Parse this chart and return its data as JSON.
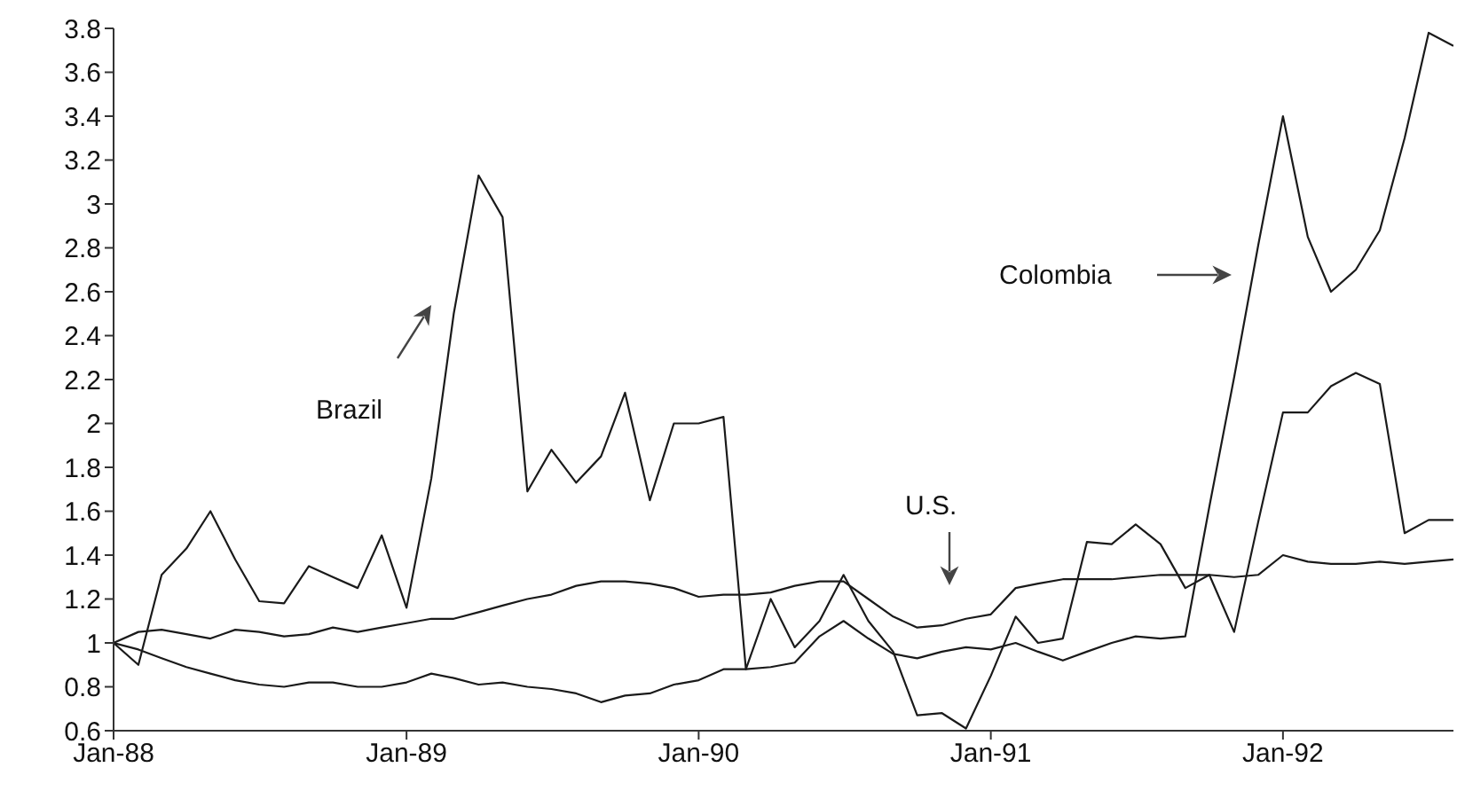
{
  "chart_data": {
    "type": "line",
    "x": [
      "1988-01",
      "1988-02",
      "1988-03",
      "1988-04",
      "1988-05",
      "1988-06",
      "1988-07",
      "1988-08",
      "1988-09",
      "1988-10",
      "1988-11",
      "1988-12",
      "1989-01",
      "1989-02",
      "1989-03",
      "1989-04",
      "1989-05",
      "1989-06",
      "1989-07",
      "1989-08",
      "1989-09",
      "1989-10",
      "1989-11",
      "1989-12",
      "1990-01",
      "1990-02",
      "1990-03",
      "1990-04",
      "1990-05",
      "1990-06",
      "1990-07",
      "1990-08",
      "1990-09",
      "1990-10",
      "1990-11",
      "1990-12",
      "1991-01",
      "1991-02",
      "1991-03",
      "1991-04",
      "1991-05",
      "1991-06",
      "1991-07",
      "1991-08",
      "1991-09",
      "1991-10",
      "1991-11",
      "1991-12",
      "1992-01",
      "1992-02",
      "1992-03",
      "1992-04",
      "1992-05",
      "1992-06",
      "1992-07",
      "1992-08"
    ],
    "series": [
      {
        "color": "#1a1a1a",
        "values": [
          1.0,
          0.9,
          1.31,
          1.43,
          1.6,
          1.38,
          1.19,
          1.18,
          1.35,
          1.3,
          1.25,
          1.49,
          1.16,
          1.75,
          2.5,
          3.13,
          2.94,
          1.69,
          1.88,
          1.73,
          1.85,
          2.14,
          1.65,
          2.0,
          2.0,
          2.03,
          0.88,
          1.2,
          0.98,
          1.1,
          1.31,
          1.1,
          0.96,
          0.67,
          0.68,
          0.61,
          0.85,
          1.12,
          1.0,
          1.02,
          1.46,
          1.45,
          1.54,
          1.45,
          1.25,
          1.31,
          1.05,
          1.55,
          2.05,
          2.05,
          2.17,
          2.23,
          2.18,
          1.5,
          1.56,
          1.56
        ]
      },
      {
        "color": "#1a1a1a",
        "values": [
          1.0,
          1.05,
          1.06,
          1.04,
          1.02,
          1.06,
          1.05,
          1.03,
          1.04,
          1.07,
          1.05,
          1.07,
          1.09,
          1.11,
          1.11,
          1.14,
          1.17,
          1.2,
          1.22,
          1.26,
          1.28,
          1.28,
          1.27,
          1.25,
          1.21,
          1.22,
          1.22,
          1.23,
          1.26,
          1.28,
          1.28,
          1.2,
          1.12,
          1.07,
          1.08,
          1.11,
          1.13,
          1.25,
          1.27,
          1.29,
          1.29,
          1.29,
          1.3,
          1.31,
          1.31,
          1.31,
          1.3,
          1.31,
          1.4,
          1.37,
          1.36,
          1.36,
          1.37,
          1.36,
          1.37,
          1.38
        ]
      },
      {
        "color": "#1a1a1a",
        "values": [
          1.0,
          0.97,
          0.93,
          0.89,
          0.86,
          0.83,
          0.81,
          0.8,
          0.82,
          0.82,
          0.8,
          0.8,
          0.82,
          0.86,
          0.84,
          0.81,
          0.82,
          0.8,
          0.79,
          0.77,
          0.73,
          0.76,
          0.77,
          0.81,
          0.83,
          0.88,
          0.88,
          0.89,
          0.91,
          1.03,
          1.1,
          1.02,
          0.95,
          0.93,
          0.96,
          0.98,
          0.97,
          1.0,
          0.96,
          0.92,
          0.96,
          1.0,
          1.03,
          1.02,
          1.03,
          1.62,
          2.21,
          2.81,
          3.4,
          2.85,
          2.6,
          2.7,
          2.88,
          3.3,
          3.78,
          3.72
        ]
      }
    ],
    "annotations": [
      "Brazil",
      "U.S.",
      "Colombia"
    ],
    "xlim": [
      "1988-01",
      "1992-08"
    ],
    "xticks": [
      {
        "value": "1988-01",
        "label": "Jan-88"
      },
      {
        "value": "1989-01",
        "label": "Jan-89"
      },
      {
        "value": "1990-01",
        "label": "Jan-90"
      },
      {
        "value": "1991-01",
        "label": "Jan-91"
      },
      {
        "value": "1992-01",
        "label": "Jan-92"
      }
    ],
    "ylim": [
      0.6,
      3.8
    ],
    "yticks": [
      0.6,
      0.8,
      1,
      1.2,
      1.4,
      1.6,
      1.8,
      2,
      2.2,
      2.4,
      2.6,
      2.8,
      3,
      3.2,
      3.4,
      3.6,
      3.8
    ],
    "grid": false,
    "legend": false,
    "marker": "none",
    "line_style": "solid"
  }
}
